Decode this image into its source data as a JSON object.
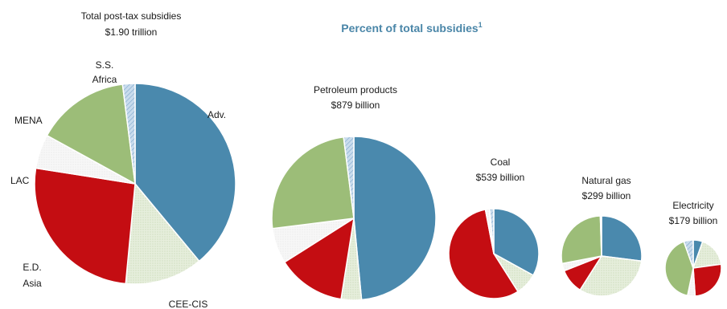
{
  "title": "Percent of total subsidies",
  "title_note": "1",
  "colors": {
    "adv": "#4a89ad",
    "cee": "#e2ebd7",
    "ed_asia": "#c40d12",
    "lac": "#f2f2f2",
    "mena": "#9cbd78",
    "ss_africa": "#b5cfe6",
    "title": "#4a86a8"
  },
  "chart_data": {
    "type": "pie",
    "title": "Percent of total subsidies",
    "series_order": [
      "Adv.",
      "CEE-CIS",
      "E.D. Asia",
      "LAC",
      "MENA",
      "S.S. Africa"
    ],
    "charts": [
      {
        "label_line1": "Total  post-tax subsidies",
        "label_line2": "$1.90 trillion",
        "total_usd": 1900,
        "slices": [
          {
            "region": "Adv.",
            "share": 39.0
          },
          {
            "region": "CEE-CIS",
            "share": 12.5
          },
          {
            "region": "E.D. Asia",
            "share": 26.0
          },
          {
            "region": "LAC",
            "share": 5.5
          },
          {
            "region": "MENA",
            "share": 15.0
          },
          {
            "region": "S.S. Africa",
            "share": 2.0
          }
        ],
        "slice_labels": [
          {
            "text": "Adv.",
            "region": "Adv."
          },
          {
            "text": "CEE-CIS",
            "region": "CEE-CIS"
          },
          {
            "text": "E.D.",
            "region": "E.D. Asia"
          },
          {
            "text": "Asia",
            "region": "E.D. Asia"
          },
          {
            "text": "LAC",
            "region": "LAC"
          },
          {
            "text": "MENA",
            "region": "MENA"
          },
          {
            "text": "S.S.",
            "region": "S.S. Africa"
          },
          {
            "text": "Africa",
            "region": "S.S. Africa"
          }
        ]
      },
      {
        "label_line1": "Petroleum products",
        "label_line2": "$879 billion",
        "total_usd": 879,
        "slices": [
          {
            "region": "Adv.",
            "share": 48.5
          },
          {
            "region": "CEE-CIS",
            "share": 4.0
          },
          {
            "region": "E.D. Asia",
            "share": 13.5
          },
          {
            "region": "LAC",
            "share": 7.0
          },
          {
            "region": "MENA",
            "share": 25.0
          },
          {
            "region": "S.S. Africa",
            "share": 2.0
          }
        ]
      },
      {
        "label_line1": "Coal",
        "label_line2": "$539 billion",
        "total_usd": 539,
        "slices": [
          {
            "region": "Adv.",
            "share": 33.0
          },
          {
            "region": "CEE-CIS",
            "share": 8.0
          },
          {
            "region": "E.D. Asia",
            "share": 56.0
          },
          {
            "region": "LAC",
            "share": 1.5
          },
          {
            "region": "MENA",
            "share": 0.0
          },
          {
            "region": "S.S. Africa",
            "share": 1.5
          }
        ]
      },
      {
        "label_line1": "Natural gas",
        "label_line2": "$299 billion",
        "total_usd": 299,
        "slices": [
          {
            "region": "Adv.",
            "share": 27.0
          },
          {
            "region": "CEE-CIS",
            "share": 32.0
          },
          {
            "region": "E.D. Asia",
            "share": 10.0
          },
          {
            "region": "LAC",
            "share": 3.0
          },
          {
            "region": "MENA",
            "share": 27.5
          },
          {
            "region": "S.S. Africa",
            "share": 0.5
          }
        ]
      },
      {
        "label_line1": "Electricity",
        "label_line2": "$179 billion",
        "total_usd": 179,
        "slices": [
          {
            "region": "Adv.",
            "share": 5.0
          },
          {
            "region": "CEE-CIS",
            "share": 16.0
          },
          {
            "region": "E.D. Asia",
            "share": 24.0
          },
          {
            "region": "LAC",
            "share": 4.0
          },
          {
            "region": "MENA",
            "share": 38.0
          },
          {
            "region": "S.S. Africa",
            "share": 5.0
          }
        ]
      }
    ]
  }
}
